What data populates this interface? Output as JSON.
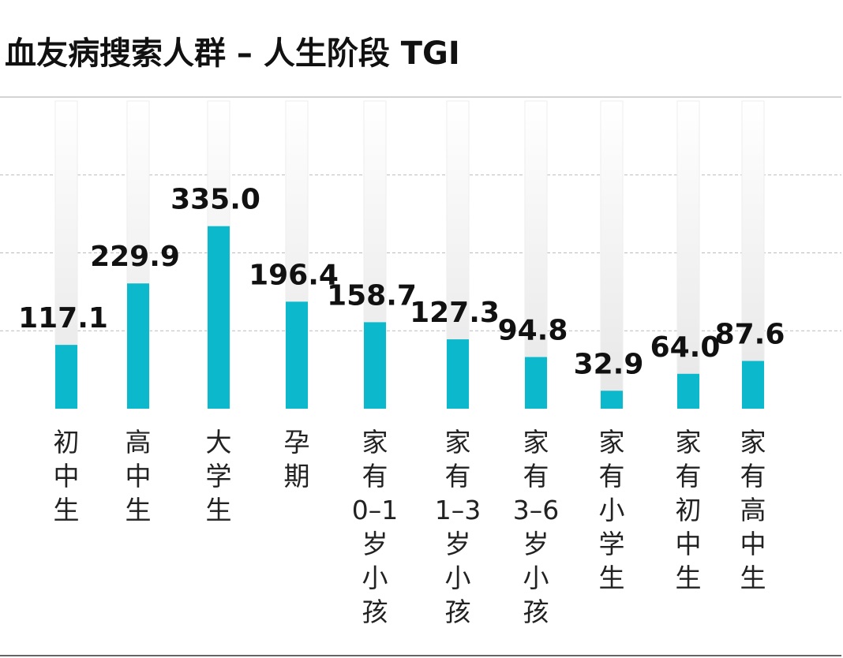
{
  "chart_data": {
    "type": "bar",
    "title": "血友病搜索人群 – 人生阶段 TGI",
    "categories": [
      "初中生",
      "高中生",
      "大学生",
      "孕期",
      "家有0–1岁小孩",
      "家有1–3岁小孩",
      "家有3–6岁小孩",
      "家有小学生",
      "家有初中生",
      "家有高中生"
    ],
    "values": [
      117.1,
      229.9,
      335.0,
      196.4,
      158.7,
      127.3,
      94.8,
      32.9,
      64.0,
      87.6
    ],
    "value_labels": [
      "117.1",
      "229.9",
      "335.0",
      "196.4",
      "158.7",
      "127.3",
      "94.8",
      "32.9",
      "64.0",
      "87.6"
    ],
    "color": "#0bb8cc",
    "ylim": [
      0,
      572
    ],
    "grid": true
  }
}
